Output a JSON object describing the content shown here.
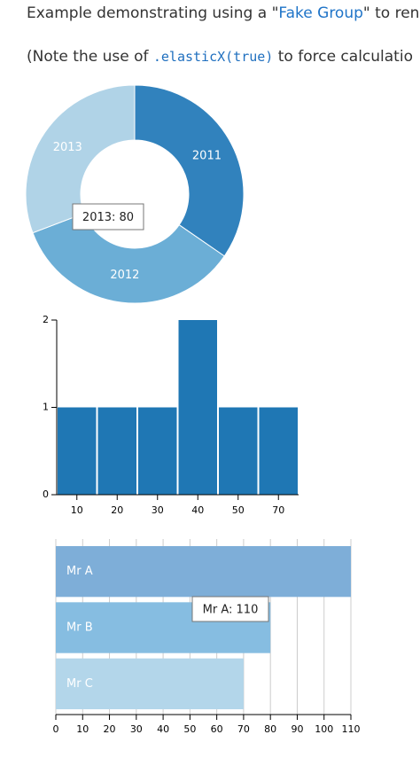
{
  "page": {
    "intro": [
      "Example demonstrating using a \"",
      "Fake Group",
      "\" to ren"
    ],
    "note": [
      "(Note the use of ",
      ".elasticX(true)",
      " to force calculatio"
    ]
  },
  "chart_data": [
    {
      "type": "pie",
      "categories": [
        "2011",
        "2012",
        "2013"
      ],
      "values": [
        90,
        90,
        80
      ],
      "colors": [
        "#3182bd",
        "#6baed6",
        "#b0d3e7"
      ],
      "tooltip": "2013: 80"
    },
    {
      "type": "bar",
      "categories": [
        "10",
        "20",
        "30",
        "40",
        "50",
        "70"
      ],
      "values": [
        1,
        1,
        1,
        2,
        1,
        1
      ],
      "color": "#1f77b4",
      "ylim": [
        0,
        2
      ],
      "yticks": [
        0,
        1,
        2
      ]
    },
    {
      "type": "row",
      "categories": [
        "Mr A",
        "Mr B",
        "Mr C"
      ],
      "values": [
        110,
        80,
        70
      ],
      "colors": [
        "#7eaed8",
        "#86bde1",
        "#b3d6ea"
      ],
      "xlim": [
        0,
        110
      ],
      "xticks": [
        0,
        10,
        20,
        30,
        40,
        50,
        60,
        70,
        80,
        90,
        100,
        110
      ],
      "grid": true,
      "tooltip": "Mr A: 110"
    }
  ]
}
